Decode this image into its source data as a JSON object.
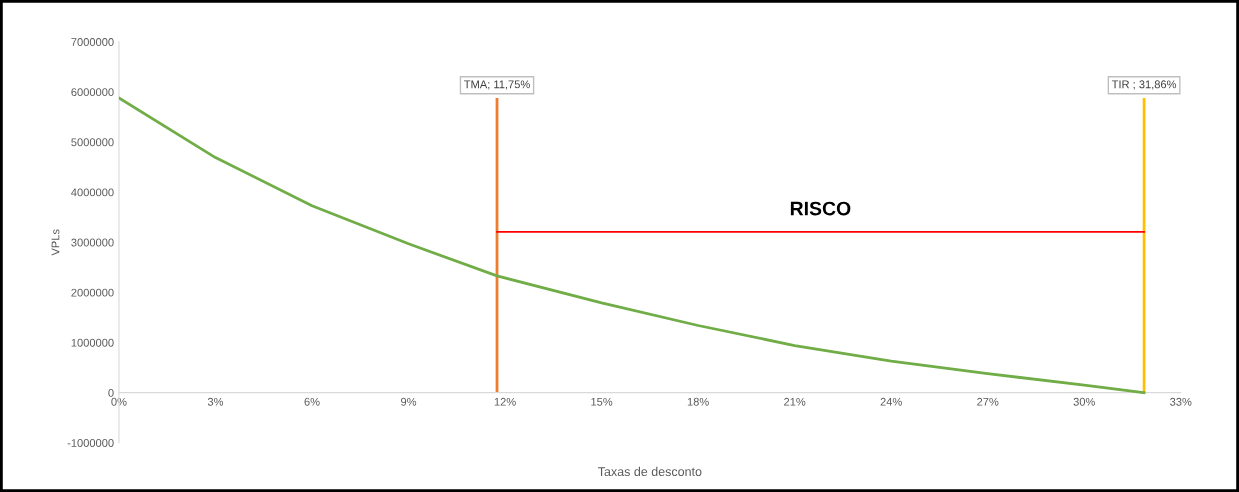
{
  "chart_data": {
    "type": "line",
    "xlabel": "Taxas de desconto",
    "ylabel": "VPLs",
    "x": [
      0,
      3,
      6,
      9,
      11.75,
      15,
      18,
      21,
      24,
      27,
      30,
      31.86
    ],
    "series": [
      {
        "color": "#70ad47",
        "values": [
          5880000,
          4690000,
          3730000,
          2970000,
          2330000,
          1790000,
          1340000,
          940000,
          630000,
          380000,
          150000,
          0
        ]
      },
      {
        "color": "#ff0000",
        "x": [
          11.75,
          31.86
        ],
        "values": [
          3210000,
          3210000
        ]
      }
    ],
    "xlim": [
      0,
      33
    ],
    "xticks": [
      {
        "value": 0,
        "label": "0%"
      },
      {
        "value": 3,
        "label": "3%"
      },
      {
        "value": 6,
        "label": "6%"
      },
      {
        "value": 9,
        "label": "9%"
      },
      {
        "value": 12,
        "label": "12%"
      },
      {
        "value": 15,
        "label": "15%"
      },
      {
        "value": 18,
        "label": "18%"
      },
      {
        "value": 21,
        "label": "21%"
      },
      {
        "value": 24,
        "label": "24%"
      },
      {
        "value": 27,
        "label": "27%"
      },
      {
        "value": 30,
        "label": "30%"
      },
      {
        "value": 33,
        "label": "33%"
      }
    ],
    "ylim": [
      -1000000,
      7000000
    ],
    "yticks": [
      -1000000,
      0,
      1000000,
      2000000,
      3000000,
      4000000,
      5000000,
      6000000,
      7000000
    ],
    "ref_lines": [
      {
        "axis": "x",
        "value": 11.75,
        "label": "TMA; 11,75%",
        "color": "#ed7d31"
      },
      {
        "axis": "x",
        "value": 31.86,
        "label": "TIR ; 31,86%",
        "color": "#ffc000"
      }
    ],
    "annotations": [
      {
        "text": "RISCO",
        "x": 21.8,
        "y": 3210000
      }
    ],
    "grid": false,
    "legend": false,
    "marker": "none",
    "line_style": "solid"
  }
}
